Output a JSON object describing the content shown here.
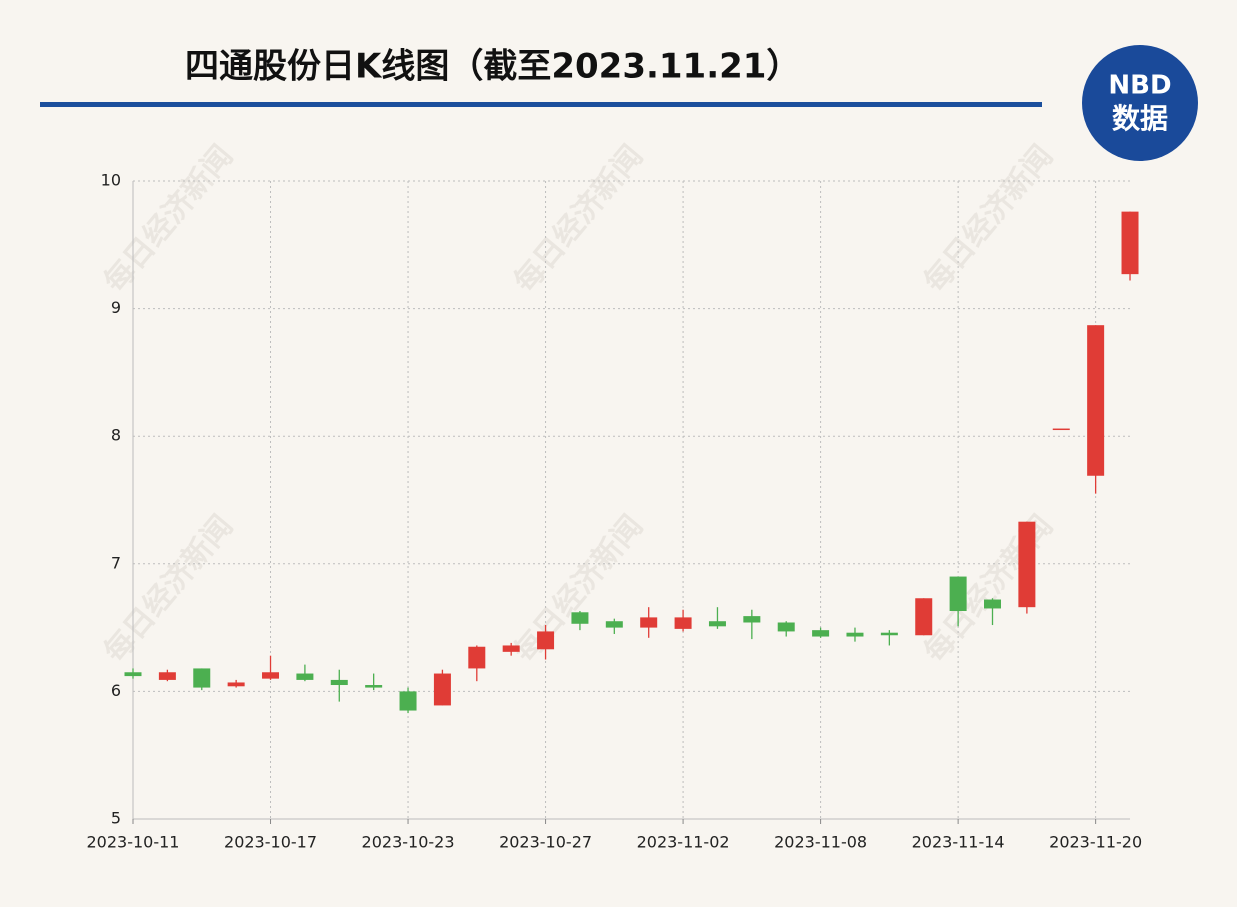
{
  "chart_data": {
    "type": "candlestick",
    "title": "四通股份日K线图（截至2023.11.21）",
    "logo": {
      "top": "NBD",
      "bottom": "数据"
    },
    "watermark": "每日经济新闻",
    "categories": [
      "2023-10-11",
      null,
      null,
      null,
      "2023-10-17",
      null,
      null,
      null,
      "2023-10-23",
      null,
      null,
      null,
      "2023-10-27",
      null,
      null,
      null,
      "2023-11-02",
      null,
      null,
      null,
      "2023-11-08",
      null,
      null,
      null,
      "2023-11-14",
      null,
      null,
      null,
      "2023-11-20",
      null
    ],
    "open": [
      6.15,
      6.09,
      6.18,
      6.04,
      6.1,
      6.14,
      6.09,
      6.05,
      6.0,
      5.89,
      6.18,
      6.31,
      6.33,
      6.62,
      6.55,
      6.5,
      6.49,
      6.55,
      6.59,
      6.54,
      6.48,
      6.46,
      6.46,
      6.44,
      6.9,
      6.72,
      6.66,
      8.06,
      7.69,
      9.27
    ],
    "high": [
      6.18,
      6.17,
      6.18,
      6.09,
      6.28,
      6.21,
      6.17,
      6.14,
      6.03,
      6.17,
      6.36,
      6.38,
      6.52,
      6.63,
      6.57,
      6.66,
      6.64,
      6.66,
      6.64,
      6.55,
      6.5,
      6.5,
      6.48,
      6.73,
      6.9,
      6.73,
      7.33,
      8.06,
      8.87,
      9.76
    ],
    "low": [
      6.1,
      6.08,
      6.01,
      6.03,
      6.09,
      6.08,
      5.92,
      6.01,
      5.83,
      5.89,
      6.08,
      6.28,
      6.25,
      6.48,
      6.45,
      6.42,
      6.47,
      6.49,
      6.41,
      6.43,
      6.42,
      6.39,
      6.36,
      6.44,
      6.51,
      6.52,
      6.61,
      8.06,
      7.55,
      9.22
    ],
    "close": [
      6.12,
      6.15,
      6.03,
      6.07,
      6.15,
      6.09,
      6.05,
      6.03,
      5.85,
      6.14,
      6.35,
      6.36,
      6.47,
      6.53,
      6.5,
      6.58,
      6.58,
      6.51,
      6.54,
      6.47,
      6.43,
      6.43,
      6.44,
      6.73,
      6.63,
      6.65,
      7.33,
      8.06,
      8.87,
      9.76
    ],
    "up_color": "#e03c36",
    "down_color": "#4caf50",
    "ylim": [
      5,
      10
    ],
    "yticks": [
      5,
      6,
      7,
      8,
      9,
      10
    ],
    "grid": true
  }
}
